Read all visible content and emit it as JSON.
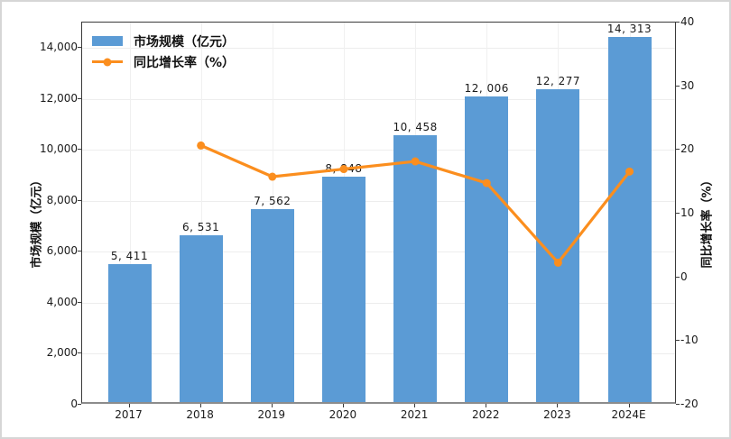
{
  "figure": {
    "background": "#ffffff",
    "outer_border_color": "#d6d6d6"
  },
  "chart_data": {
    "type": "bar+line combo",
    "title": "",
    "categories": [
      "2017",
      "2018",
      "2019",
      "2020",
      "2021",
      "2022",
      "2023",
      "2024E"
    ],
    "series": [
      {
        "name": "市场规模（亿元）",
        "type": "bar",
        "axis": "left",
        "color": "#5B9BD5",
        "values": [
          5411,
          6531,
          7562,
          8848,
          10458,
          12006,
          12277,
          14313
        ],
        "labels": [
          "5, 411",
          "6, 531",
          "7, 562",
          "8, 848",
          "10, 458",
          "12, 006",
          "12, 277",
          "14, 313"
        ]
      },
      {
        "name": "同比增长率（%）",
        "type": "line",
        "axis": "right",
        "color": "#FB8E1E",
        "values": [
          null,
          20.7,
          15.8,
          17.0,
          18.2,
          14.8,
          2.3,
          16.6
        ]
      }
    ],
    "left_axis": {
      "label": "市场规模（亿元）",
      "ticks": [
        "0",
        "2,000",
        "4,000",
        "6,000",
        "8,000",
        "10,000",
        "12,000",
        "14,000"
      ],
      "tick_values": [
        0,
        2000,
        4000,
        6000,
        8000,
        10000,
        12000,
        14000
      ],
      "min": 0,
      "max": 15000
    },
    "right_axis": {
      "label": "同比增长率（%）",
      "ticks": [
        "-20",
        "-10",
        "0",
        "10",
        "20",
        "30",
        "40"
      ],
      "tick_values": [
        -20,
        -10,
        0,
        10,
        20,
        30,
        40
      ],
      "min": -20,
      "max": 40
    },
    "grid": true,
    "legend_position": "top-left"
  }
}
